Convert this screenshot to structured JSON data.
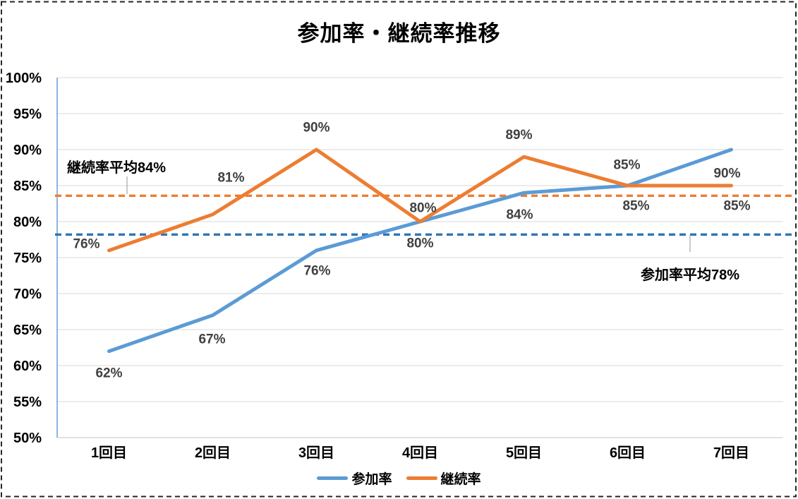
{
  "chart_data": {
    "type": "line",
    "title": "参加率・継続率推移",
    "categories": [
      "1回目",
      "2回目",
      "3回目",
      "4回目",
      "5回目",
      "6回目",
      "7回目"
    ],
    "series": [
      {
        "key": "participation-rate",
        "name": "参加率",
        "color": "#5B9BD5",
        "values": [
          62,
          67,
          76,
          80,
          84,
          85,
          90
        ],
        "data_labels": [
          "62%",
          "67%",
          "76%",
          "80%",
          "84%",
          "85%",
          "90%"
        ],
        "label_offsets": [
          [
            0,
            30
          ],
          [
            -1,
            33
          ],
          [
            1,
            28
          ],
          [
            0,
            30
          ],
          [
            -6,
            30
          ],
          [
            12,
            28
          ],
          [
            -6,
            33
          ]
        ]
      },
      {
        "key": "continuation-rate",
        "name": "継続率",
        "color": "#ED7D31",
        "values": [
          76,
          81,
          90,
          80,
          89,
          85,
          85
        ],
        "data_labels": [
          "76%",
          "81%",
          "90%",
          "80%",
          "89%",
          "85%",
          "85%"
        ],
        "label_offsets": [
          [
            -32,
            -10
          ],
          [
            26,
            -53
          ],
          [
            0,
            -32
          ],
          [
            4,
            -20
          ],
          [
            -7,
            -32
          ],
          [
            -1,
            -30
          ],
          [
            8,
            28
          ]
        ]
      }
    ],
    "y_axis": {
      "min": 50,
      "max": 100,
      "step": 5,
      "ticks": [
        "100%",
        "95%",
        "90%",
        "85%",
        "80%",
        "75%",
        "70%",
        "65%",
        "60%",
        "55%",
        "50%"
      ]
    },
    "reference_lines": [
      {
        "key": "continuation-average",
        "label": "継続率平均84%",
        "value": 84,
        "plot_value": 83.6,
        "color": "#ED7D31"
      },
      {
        "key": "participation-average",
        "label": "参加率平均78%",
        "value": 78,
        "plot_value": 78.2,
        "color": "#2E75B6"
      }
    ],
    "legend_position": "bottom",
    "grid": true
  },
  "colors": {
    "gridline": "#D9D9D9",
    "y_axis_line": "#5B9BD5",
    "x_axis_line": "#D9D9D9",
    "data_label": "#404040",
    "leader_line": "#A6A6A6",
    "selection_border": "#262626"
  }
}
